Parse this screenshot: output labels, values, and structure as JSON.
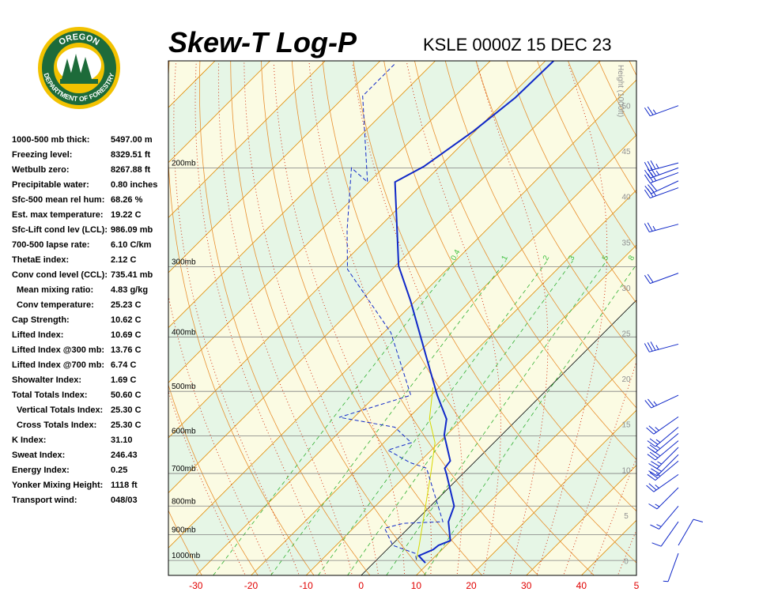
{
  "logo": {
    "top": "OREGON",
    "bottom": "DEPARTMENT OF FORESTRY"
  },
  "stats": [
    [
      "1000-500 mb thick:",
      "5497.00 m"
    ],
    [
      "Freezing level:",
      "8329.51 ft"
    ],
    [
      "Wetbulb zero:",
      "8267.88 ft"
    ],
    [
      "Precipitable water:",
      "0.80 inches"
    ],
    [
      "Sfc-500 mean rel hum:",
      "68.26 %"
    ],
    [
      "Est. max temperature:",
      "19.22 C"
    ],
    [
      "Sfc-Lift cond lev (LCL):",
      "986.09 mb"
    ],
    [
      "700-500 lapse rate:",
      "6.10 C/km"
    ],
    [
      "ThetaE index:",
      "2.12 C"
    ],
    [
      "Conv cond level (CCL):",
      "735.41 mb"
    ],
    [
      "Mean mixing ratio:",
      "4.83 g/kg"
    ],
    [
      "Conv temperature:",
      "25.23 C"
    ],
    [
      "Cap Strength:",
      "10.62 C"
    ],
    [
      "Lifted Index:",
      "10.69 C"
    ],
    [
      "Lifted Index @300 mb:",
      "13.76 C"
    ],
    [
      "Lifted Index @700 mb:",
      "6.74 C"
    ],
    [
      "Showalter Index:",
      "1.69 C"
    ],
    [
      "Total Totals Index:",
      "50.60 C"
    ],
    [
      "Vertical Totals Index:",
      "25.30 C"
    ],
    [
      "Cross Totals Index:",
      "25.30 C"
    ],
    [
      "K Index:",
      "31.10"
    ],
    [
      "Sweat Index:",
      "246.43"
    ],
    [
      "Energy Index:",
      "0.25"
    ],
    [
      "Yonker Mixing Height:",
      "1118 ft"
    ],
    [
      "Transport wind:",
      "048/03"
    ]
  ],
  "chart_data": {
    "type": "skewt",
    "title": "Skew-T Log-P",
    "subtitle": "KSLE 0000Z 15 DEC 23",
    "xlim": [
      -35,
      50
    ],
    "xticks": [
      -30,
      -20,
      -10,
      0,
      10,
      20,
      30,
      40,
      {
        "value": 50,
        "label": "5"
      }
    ],
    "ylim": [
      1063,
      129
    ],
    "log_y": true,
    "yticks": [
      {
        "value": 1000,
        "label": "1000mb"
      },
      {
        "value": 900,
        "label": "900mb"
      },
      {
        "value": 800,
        "label": "800mb"
      },
      {
        "value": 700,
        "label": "700mb"
      },
      {
        "value": 600,
        "label": "600mb"
      },
      {
        "value": 500,
        "label": "500mb"
      },
      {
        "value": 400,
        "label": "400mb"
      },
      {
        "value": 300,
        "label": "300mb"
      },
      {
        "value": 200,
        "label": "200mb"
      }
    ],
    "y2label": "Height (1000ft)",
    "y2lim": [
      -1.6,
      54.9
    ],
    "y2ticks": [
      0,
      5,
      10,
      15,
      20,
      25,
      30,
      35,
      40,
      45,
      50
    ],
    "mixing_ratio_lines": [
      0.4,
      1,
      2,
      3,
      5,
      8
    ],
    "series": [
      {
        "color": "#1028c8",
        "dash": "none",
        "width": 2,
        "pressure": [
          1010,
          981,
          956,
          940,
          922,
          853,
          800,
          703,
          685,
          665,
          598,
          560,
          508,
          433,
          345,
          299,
          212,
          199,
          172,
          150,
          129
        ],
        "temperature": [
          9.4,
          6.9,
          8.4,
          8.6,
          9.9,
          6.1,
          4.3,
          -2.8,
          -4.3,
          -4.6,
          -10.4,
          -12.9,
          -18.9,
          -28.0,
          -40.9,
          -49.4,
          -65.3,
          -62.9,
          -60.3,
          -58.8,
          -58.5
        ]
      },
      {
        "color": "#d8d800",
        "dash": "none",
        "width": 1,
        "pressure": [
          997,
          940,
          703,
          617,
          560,
          492
        ],
        "temperature": [
          7.2,
          5.1,
          -5.7,
          -10.7,
          -16.0,
          -21.1
        ]
      },
      {
        "color": "#1028c8",
        "dash": "5,3",
        "width": 1,
        "pressure": [
          997,
          971,
          940,
          876,
          859,
          853,
          685,
          669,
          636,
          617,
          579,
          556,
          508,
          393,
          303,
          258,
          200,
          212,
          149,
          130
        ],
        "temperature": [
          7.2,
          5.8,
          0.3,
          -4.3,
          -1.8,
          5.1,
          -7.6,
          -11.7,
          -17.9,
          -15.0,
          -20.8,
          -32.7,
          -23.7,
          -38.7,
          -58.1,
          -65.3,
          -75.8,
          -70.3,
          -86.8,
          -86.8
        ]
      }
    ],
    "wind": {
      "color": "#1028c8",
      "pressure": [
        155,
        196,
        200,
        204,
        211,
        217,
        252,
        308,
        412,
        508,
        555,
        579,
        594,
        612,
        629,
        648,
        665,
        703,
        742,
        800,
        853,
        940,
        971
      ],
      "direction": [
        250,
        255,
        250,
        250,
        245,
        250,
        255,
        250,
        255,
        245,
        235,
        230,
        230,
        230,
        225,
        225,
        230,
        235,
        225,
        220,
        215,
        30,
        200
      ],
      "speed": [
        25,
        35,
        35,
        30,
        30,
        30,
        25,
        20,
        35,
        25,
        25,
        25,
        25,
        30,
        25,
        30,
        25,
        25,
        15,
        15,
        10,
        10,
        5
      ]
    }
  }
}
